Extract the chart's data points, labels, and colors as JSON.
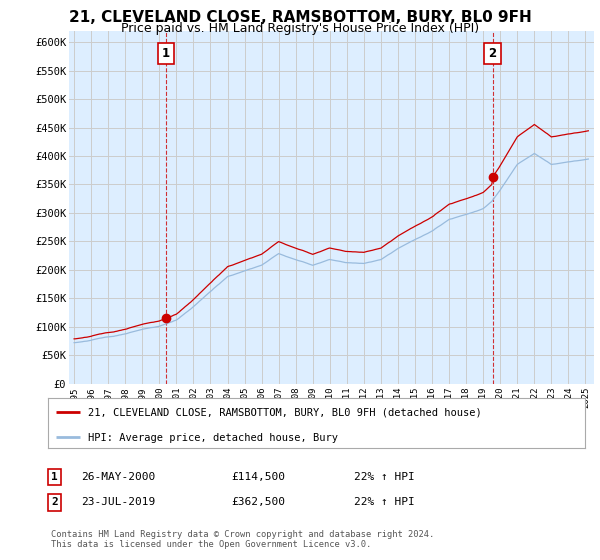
{
  "title": "21, CLEVELAND CLOSE, RAMSBOTTOM, BURY, BL0 9FH",
  "subtitle": "Price paid vs. HM Land Registry's House Price Index (HPI)",
  "ylabel_ticks": [
    "£0",
    "£50K",
    "£100K",
    "£150K",
    "£200K",
    "£250K",
    "£300K",
    "£350K",
    "£400K",
    "£450K",
    "£500K",
    "£550K",
    "£600K"
  ],
  "ylim": [
    0,
    620000
  ],
  "yticks": [
    0,
    50000,
    100000,
    150000,
    200000,
    250000,
    300000,
    350000,
    400000,
    450000,
    500000,
    550000,
    600000
  ],
  "purchase_color": "#cc0000",
  "hpi_color": "#99bbdd",
  "plot_bg_color": "#ddeeff",
  "purchase_label": "21, CLEVELAND CLOSE, RAMSBOTTOM, BURY, BL0 9FH (detached house)",
  "hpi_label": "HPI: Average price, detached house, Bury",
  "annotation1_year": 2000.4,
  "annotation1_value": 114500,
  "annotation1_date": "26-MAY-2000",
  "annotation1_price": "£114,500",
  "annotation1_hpi": "22% ↑ HPI",
  "annotation2_year": 2019.55,
  "annotation2_value": 362500,
  "annotation2_date": "23-JUL-2019",
  "annotation2_price": "£362,500",
  "annotation2_hpi": "22% ↑ HPI",
  "footer": "Contains HM Land Registry data © Crown copyright and database right 2024.\nThis data is licensed under the Open Government Licence v3.0.",
  "background_color": "#ffffff",
  "grid_color": "#cccccc",
  "title_fontsize": 11,
  "subtitle_fontsize": 9
}
